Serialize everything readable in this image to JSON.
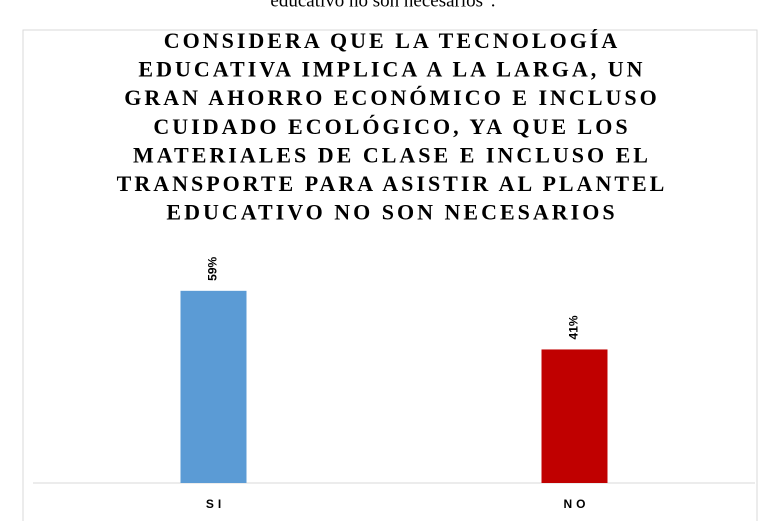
{
  "caption": "educativo no son necesarios\".",
  "chart_data": {
    "type": "bar",
    "title": [
      "CONSIDERA QUE LA TECNOLOGÍA",
      "EDUCATIVA IMPLICA A LA LARGA, UN",
      "GRAN AHORRO ECONÓMICO E INCLUSO",
      "CUIDADO ECOLÓGICO, YA QUE LOS",
      "MATERIALES DE CLASE E INCLUSO EL",
      "TRANSPORTE PARA ASISTIR AL PLANTEL",
      "EDUCATIVO NO SON NECESARIOS"
    ],
    "categories": [
      "SI",
      "NO"
    ],
    "values": [
      59,
      41
    ],
    "value_labels": [
      "59%",
      "41%"
    ],
    "colors": [
      "#5b9bd5",
      "#c00000"
    ],
    "ylim": [
      0,
      70
    ]
  }
}
